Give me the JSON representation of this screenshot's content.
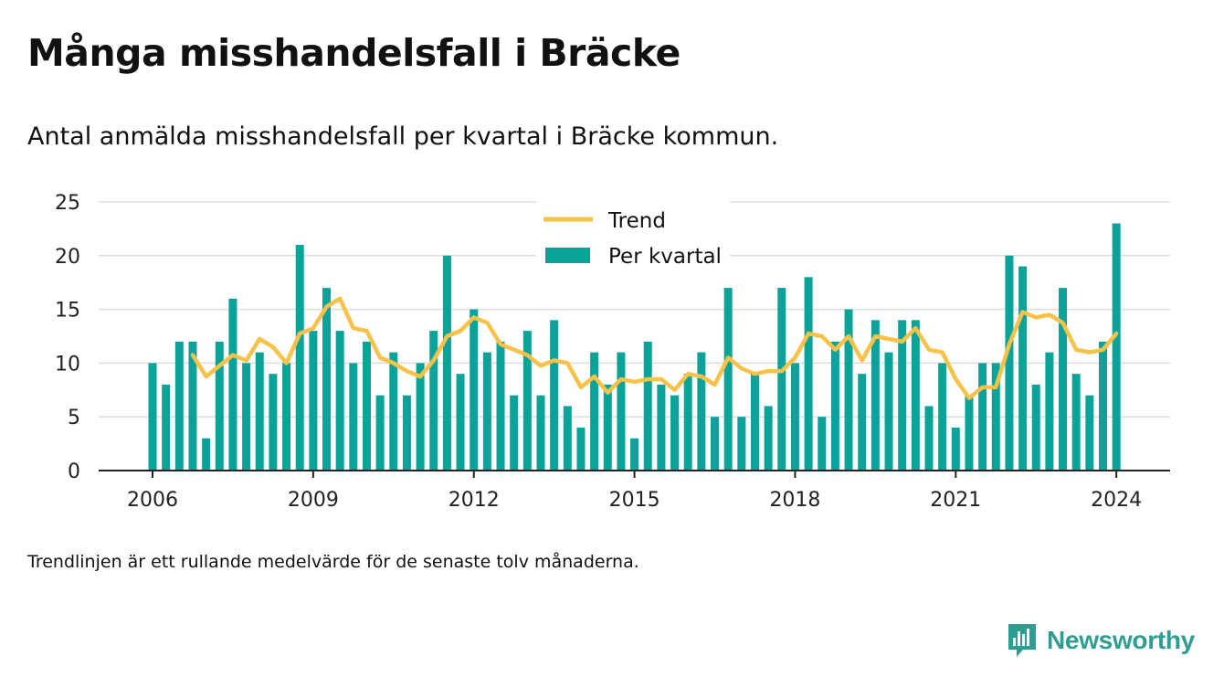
{
  "header": {
    "title": "Många misshandelsfall i Bräcke",
    "subtitle": "Antal anmälda misshandelsfall per kvartal i Bräcke kommun."
  },
  "footer": {
    "note": "Trendlinjen är ett rullande medelvärde för de senaste tolv månaderna.",
    "brand": "Newsworthy",
    "logo_icon": "bar-chart-speech-bubble-icon"
  },
  "colors": {
    "bar": "#0aa39a",
    "trend": "#f8c248",
    "grid": "#dddddd",
    "axis": "#222222",
    "brand": "#2e9e93"
  },
  "chart_data": {
    "type": "bar",
    "title": "",
    "xlabel": "",
    "ylabel": "",
    "ylim": [
      0,
      25
    ],
    "yticks": [
      "0",
      "5",
      "10",
      "15",
      "20",
      "25"
    ],
    "xticks": [
      "2006",
      "2009",
      "2012",
      "2015",
      "2018",
      "2021",
      "2024"
    ],
    "grid": true,
    "legend": {
      "position": "top-center",
      "trend_label": "Trend",
      "bar_label": "Per kvartal"
    },
    "x_start": "2006 Q1",
    "x_interval": "quarter",
    "series": [
      {
        "name": "Per kvartal",
        "type": "bar",
        "values": [
          10,
          8,
          12,
          12,
          3,
          12,
          16,
          10,
          11,
          9,
          10,
          21,
          13,
          17,
          13,
          10,
          12,
          7,
          11,
          7,
          10,
          13,
          20,
          9,
          15,
          11,
          12,
          7,
          13,
          7,
          14,
          6,
          4,
          11,
          8,
          11,
          3,
          12,
          8,
          7,
          9,
          11,
          5,
          17,
          5,
          9,
          6,
          17,
          10,
          18,
          5,
          12,
          15,
          9,
          14,
          11,
          14,
          14,
          6,
          10,
          4,
          7,
          10,
          10,
          20,
          19,
          8,
          11,
          17,
          9,
          7,
          12,
          23
        ]
      },
      {
        "name": "Trend",
        "type": "line",
        "start_index": 3,
        "values": [
          10.75,
          8.75,
          9.75,
          10.75,
          10.25,
          12.25,
          11.5,
          10.0,
          12.75,
          13.25,
          15.25,
          16.0,
          13.25,
          13.0,
          10.5,
          10.0,
          9.25,
          8.75,
          10.25,
          12.5,
          13.0,
          14.25,
          13.75,
          11.75,
          11.25,
          10.75,
          9.75,
          10.25,
          10.0,
          7.75,
          8.75,
          7.25,
          8.5,
          8.25,
          8.5,
          8.5,
          7.5,
          9.0,
          8.75,
          8.0,
          10.5,
          9.5,
          9.0,
          9.25,
          9.25,
          10.5,
          12.75,
          12.5,
          11.25,
          12.5,
          10.25,
          12.5,
          12.25,
          12.0,
          13.25,
          11.25,
          11.0,
          8.5,
          6.75,
          7.75,
          7.75,
          11.75,
          14.75,
          14.25,
          14.5,
          13.75,
          11.25,
          11.0,
          11.25,
          12.75
        ]
      }
    ]
  }
}
